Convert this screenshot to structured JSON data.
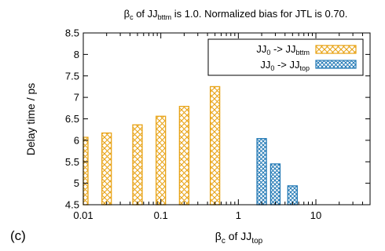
{
  "panel_label": "(c)",
  "chart_data": {
    "type": "bar",
    "title": {
      "pre": "β",
      "sub1": "c",
      "mid": " of JJ",
      "sub2": "bttm",
      "post": " is 1.0. Normalized bias for JTL is 0.70."
    },
    "xlabel": {
      "pre": "β",
      "sub1": "c",
      "mid": " of JJ",
      "sub2": "top"
    },
    "ylabel": "Delay time / ps",
    "x_scale": "log",
    "xlim": [
      0.01,
      50
    ],
    "ylim": [
      4.5,
      8.5
    ],
    "x_ticks": [
      {
        "value": 0.01,
        "label": "0.01"
      },
      {
        "value": 0.1,
        "label": "0.1"
      },
      {
        "value": 1,
        "label": "1"
      },
      {
        "value": 10,
        "label": "10"
      }
    ],
    "y_ticks": [
      {
        "value": 4.5,
        "label": "4.5"
      },
      {
        "value": 5,
        "label": "5"
      },
      {
        "value": 5.5,
        "label": "5.5"
      },
      {
        "value": 6,
        "label": "6"
      },
      {
        "value": 6.5,
        "label": "6.5"
      },
      {
        "value": 7,
        "label": "7"
      },
      {
        "value": 7.5,
        "label": "7.5"
      },
      {
        "value": 8,
        "label": "8"
      },
      {
        "value": 8.5,
        "label": "8.5"
      }
    ],
    "grid": false,
    "legend_position": "top-right",
    "series": [
      {
        "legend": {
          "pre": "JJ",
          "sub1": "0",
          "mid": " -> JJ",
          "sub2": "bttm"
        },
        "color": "#e8a317",
        "points": [
          {
            "x": 0.01,
            "y": 6.07
          },
          {
            "x": 0.02,
            "y": 6.17
          },
          {
            "x": 0.05,
            "y": 6.36
          },
          {
            "x": 0.1,
            "y": 6.56
          },
          {
            "x": 0.2,
            "y": 6.79
          },
          {
            "x": 0.5,
            "y": 7.25
          }
        ]
      },
      {
        "legend": {
          "pre": "JJ",
          "sub1": "0",
          "mid": " -> JJ",
          "sub2": "top"
        },
        "color": "#1f77b4",
        "points": [
          {
            "x": 2,
            "y": 6.04
          },
          {
            "x": 3,
            "y": 5.45
          },
          {
            "x": 5,
            "y": 4.94
          }
        ]
      }
    ]
  }
}
